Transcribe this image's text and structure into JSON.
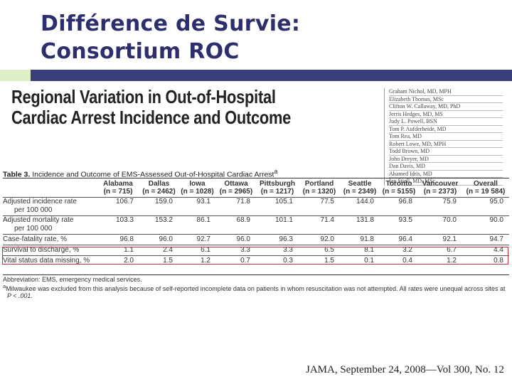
{
  "slide": {
    "title_line1": "Différence de Survie:",
    "title_line2": "Consortium ROC"
  },
  "article": {
    "title_line1": "Regional Variation in Out-of-Hospital",
    "title_line2": "Cardiac Arrest Incidence and Outcome",
    "authors": [
      "Graham Nichol, MD, MPH",
      "Elizabeth Thomas, MSc",
      "Clifton W. Callaway, MD, PhD",
      "Jerris Hedges, MD, MS",
      "Judy L. Powell, BSN",
      "Tom P. Aufderheide, MD",
      "Tom Rea, MD",
      "Robert Lowe, MD, MPH",
      "Todd Brown, MD",
      "John Dreyer, MD",
      "Dan Davis, MD",
      "Ahamed Idris, MD",
      "Ian Stiell, MD, MSc"
    ]
  },
  "table": {
    "caption_bold": "Table 3.",
    "caption_text": " Incidence and Outcome of EMS-Assessed Out-of-Hospital Cardiac Arrest",
    "caption_mark": "a",
    "columns": [
      {
        "name": "Alabama",
        "n": "(n = 715)"
      },
      {
        "name": "Dallas",
        "n": "(n = 2462)"
      },
      {
        "name": "Iowa",
        "n": "(n = 1028)"
      },
      {
        "name": "Ottawa",
        "n": "(n = 2965)"
      },
      {
        "name": "Pittsburgh",
        "n": "(n = 1217)"
      },
      {
        "name": "Portland",
        "n": "(n = 1320)"
      },
      {
        "name": "Seattle",
        "n": "(n = 2349)"
      },
      {
        "name": "Toronto",
        "n": "(n = 5155)"
      },
      {
        "name": "Vancouver",
        "n": "(n = 2373)"
      },
      {
        "name": "Overall",
        "n": "(n = 19 584)"
      }
    ],
    "rows": [
      {
        "label": "Adjusted incidence rate",
        "sublabel": "per 100 000",
        "values": [
          "106.7",
          "159.0",
          "93.1",
          "71.8",
          "105.1",
          "77.5",
          "144.0",
          "96.8",
          "75.9",
          "95.0"
        ]
      },
      {
        "label": "Adjusted mortality rate",
        "sublabel": "per 100 000",
        "values": [
          "103.3",
          "153.2",
          "86.1",
          "68.9",
          "101.1",
          "71.4",
          "131.8",
          "93.5",
          "70.0",
          "90.0"
        ]
      },
      {
        "label": "Case-fatality rate, %",
        "values": [
          "96.8",
          "96.0",
          "92.7",
          "96.0",
          "96.3",
          "92.0",
          "91.8",
          "96.4",
          "92.1",
          "94.7"
        ]
      },
      {
        "label": "Survival to discharge, %",
        "values": [
          "1.1",
          "2.4",
          "6.1",
          "3.3",
          "3.3",
          "6.5",
          "8.1",
          "3.2",
          "6.7",
          "4.4"
        ]
      },
      {
        "label": "Vital status data missing, %",
        "values": [
          "2.0",
          "1.5",
          "1.2",
          "0.7",
          "0.3",
          "1.5",
          "0.1",
          "0.4",
          "1.2",
          "0.8"
        ]
      }
    ],
    "footnote_abbrev": "Abbreviation: EMS, emergency medical services.",
    "footnote_a_mark": "a",
    "footnote_a": "Milwaukee was excluded from this analysis because of self-reported incomplete data on patients in whom resuscitation was not attempted. All rates were unequal across sites at",
    "footnote_p": "P < .001."
  },
  "citation": "JAMA, September 24, 2008—Vol 300, No. 12",
  "colors": {
    "title": "#2d2e6d",
    "accent_navy": "#3a3f7c",
    "accent_green": "#dfefc7",
    "highlight": "#c0323a"
  }
}
